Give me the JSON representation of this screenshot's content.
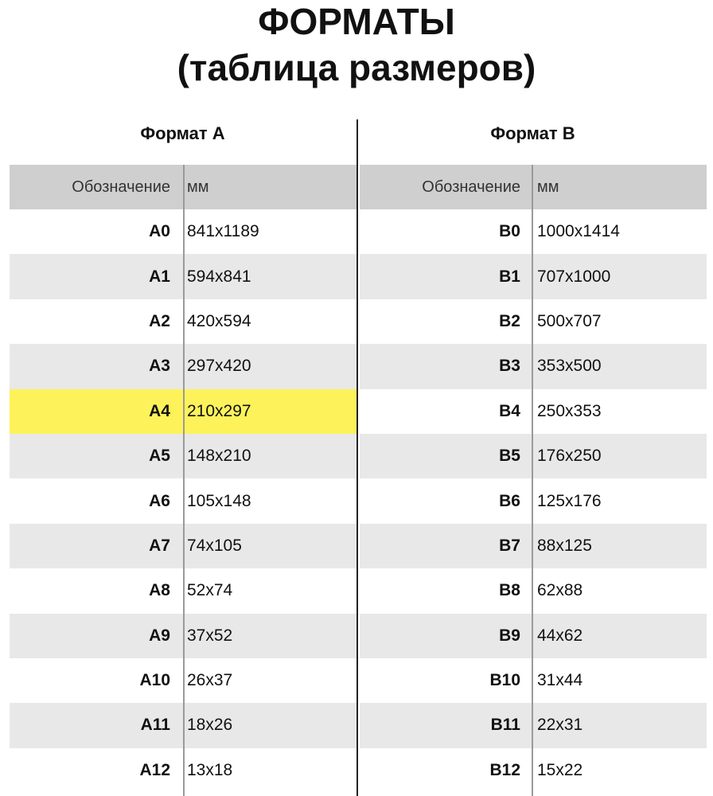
{
  "title_line1": "ФОРМАТЫ",
  "title_line2": "(таблица размеров)",
  "colors": {
    "header_bg": "#cfcfcf",
    "alt_row_bg": "#e8e8e8",
    "highlight": "#fef25b"
  },
  "tables": [
    {
      "heading": "Формат А",
      "col_designation": "Обозначение",
      "col_mm": "мм",
      "highlighted": "A4",
      "rows": [
        {
          "name": "A0",
          "size": "841x1189"
        },
        {
          "name": "A1",
          "size": "594x841"
        },
        {
          "name": "A2",
          "size": "420x594"
        },
        {
          "name": "A3",
          "size": "297x420"
        },
        {
          "name": "A4",
          "size": "210x297"
        },
        {
          "name": "A5",
          "size": "148x210"
        },
        {
          "name": "A6",
          "size": "105x148"
        },
        {
          "name": "A7",
          "size": "74x105"
        },
        {
          "name": "A8",
          "size": "52x74"
        },
        {
          "name": "A9",
          "size": "37x52"
        },
        {
          "name": "A10",
          "size": "26x37"
        },
        {
          "name": "A11",
          "size": "18x26"
        },
        {
          "name": "A12",
          "size": "13x18"
        }
      ]
    },
    {
      "heading": "Формат В",
      "col_designation": "Обозначение",
      "col_mm": "мм",
      "highlighted": "",
      "rows": [
        {
          "name": "B0",
          "size": "1000x1414"
        },
        {
          "name": "B1",
          "size": "707x1000"
        },
        {
          "name": "B2",
          "size": "500x707"
        },
        {
          "name": "B3",
          "size": "353x500"
        },
        {
          "name": "B4",
          "size": "250x353"
        },
        {
          "name": "B5",
          "size": "176x250"
        },
        {
          "name": "B6",
          "size": "125x176"
        },
        {
          "name": "B7",
          "size": "88x125"
        },
        {
          "name": "B8",
          "size": "62x88"
        },
        {
          "name": "B9",
          "size": "44x62"
        },
        {
          "name": "B10",
          "size": "31x44"
        },
        {
          "name": "B11",
          "size": "22x31"
        },
        {
          "name": "B12",
          "size": "15x22"
        }
      ]
    }
  ]
}
